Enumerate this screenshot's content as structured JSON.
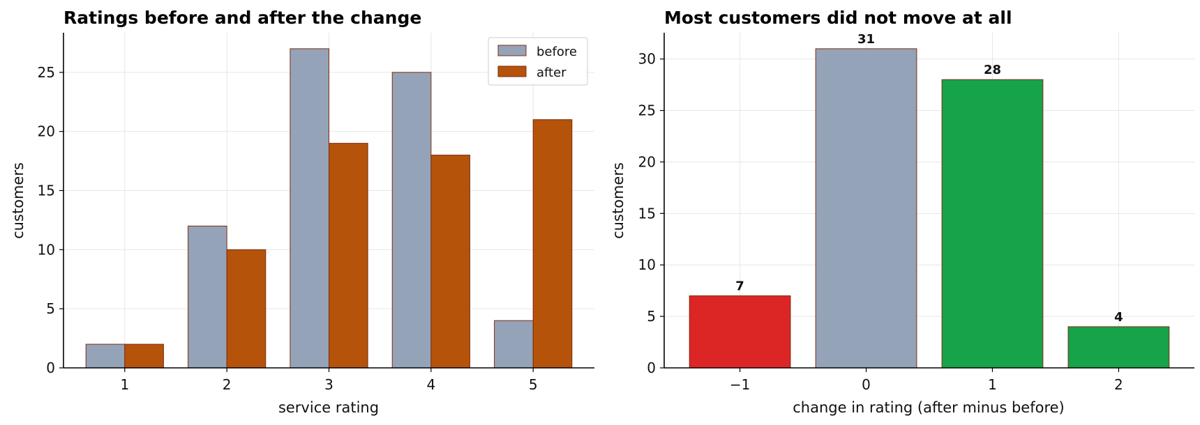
{
  "chart_data": [
    {
      "type": "bar",
      "title": "Ratings before and after the change",
      "xlabel": "service rating",
      "ylabel": "customers",
      "categories": [
        "1",
        "2",
        "3",
        "4",
        "5"
      ],
      "series": [
        {
          "name": "before",
          "values": [
            2,
            12,
            27,
            25,
            4
          ],
          "color": "#94a3b8"
        },
        {
          "name": "after",
          "values": [
            2,
            10,
            19,
            18,
            21
          ],
          "color": "#b45309"
        }
      ],
      "ylim": [
        0,
        28.35
      ],
      "yticks": [
        "0",
        "5",
        "10",
        "15",
        "20",
        "25"
      ],
      "grid": true,
      "legend": "top-right",
      "edge_color": "#7c2d12"
    },
    {
      "type": "bar",
      "title": "Most customers did not move at all",
      "xlabel": "change in rating (after minus before)",
      "ylabel": "customers",
      "categories": [
        "−1",
        "0",
        "1",
        "2"
      ],
      "values": [
        7,
        31,
        28,
        4
      ],
      "colors": [
        "#dc2626",
        "#94a3b8",
        "#16a34a",
        "#16a34a"
      ],
      "data_labels": [
        "7",
        "31",
        "28",
        "4"
      ],
      "ylim": [
        0,
        32.55
      ],
      "yticks": [
        "0",
        "5",
        "10",
        "15",
        "20",
        "25",
        "30"
      ],
      "grid": true,
      "edge_color": "#7c2d12"
    }
  ]
}
